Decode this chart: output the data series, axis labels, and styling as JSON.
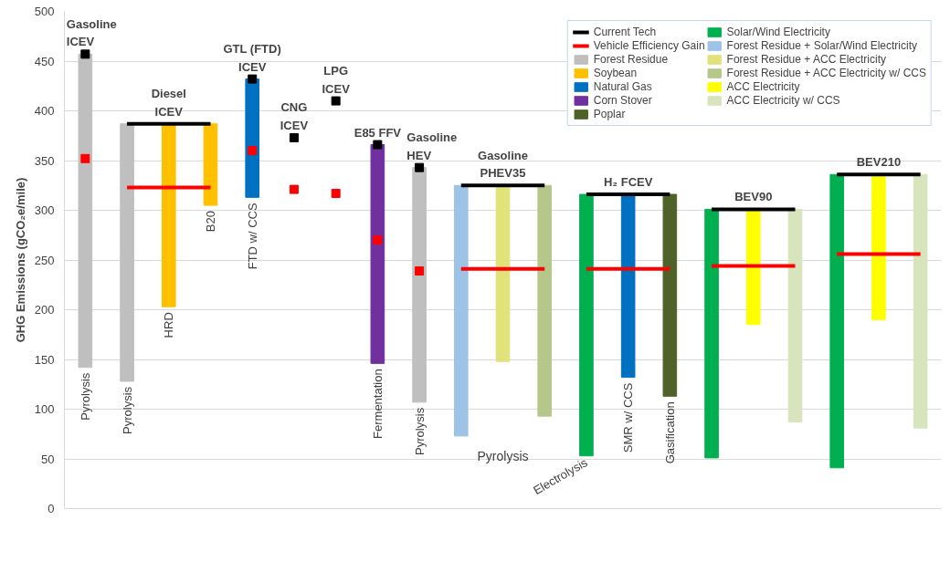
{
  "chart_data": {
    "type": "bar",
    "ylabel": "GHG Emissions (gCO₂e/mile)",
    "categories": [
      "Pyrolysis",
      "Pyrolysis",
      "HRD",
      "B20",
      "FTD w/ CCS",
      null,
      null,
      "Fermentation",
      "Pyrolysis",
      null,
      null,
      null,
      "Electrolysis",
      "SMR w/ CCS",
      "Gasification",
      null,
      null,
      null,
      null,
      null,
      null
    ],
    "ylim": [
      0,
      500
    ],
    "yticks": [
      0,
      50,
      100,
      150,
      200,
      250,
      300,
      350,
      400,
      450,
      500
    ],
    "grid": "y",
    "legend": "top right",
    "tick_labels": "y",
    "series": [
      {
        "name": "Current Tech",
        "type": "line",
        "color": "#000000",
        "values": [
          null,
          387,
          387,
          387,
          null,
          null,
          null,
          null,
          null,
          null,
          null,
          null,
          null,
          null,
          null,
          null,
          null,
          null,
          null,
          null,
          null
        ]
      },
      {
        "name": "Vehicle Efficiency Gain",
        "type": "line",
        "color": "#ff0000",
        "values": [
          null,
          323,
          323,
          323,
          null,
          null,
          null,
          null,
          null,
          null,
          null,
          null,
          null,
          null,
          null,
          null,
          null,
          null,
          null,
          null,
          null
        ]
      },
      {
        "type": "scatter",
        "marker": "square",
        "color": "#000000",
        "values": [
          457,
          null,
          null,
          null,
          432,
          373,
          410,
          366,
          343,
          null,
          null,
          null,
          null,
          null,
          null,
          null,
          null,
          null,
          null,
          null,
          null
        ]
      },
      {
        "type": "scatter",
        "marker": "square",
        "color": "#ff0000",
        "values": [
          352,
          null,
          null,
          null,
          360,
          321,
          317,
          270,
          239,
          null,
          null,
          null,
          null,
          null,
          null,
          null,
          null,
          null,
          null,
          null,
          null
        ]
      },
      {
        "type": "line",
        "color": "#000000",
        "values": [
          null,
          null,
          null,
          null,
          null,
          null,
          null,
          null,
          null,
          325,
          325,
          325,
          null,
          null,
          null,
          null,
          null,
          null,
          null,
          null,
          null
        ]
      },
      {
        "type": "line",
        "color": "#ff0000",
        "values": [
          null,
          null,
          null,
          null,
          null,
          null,
          null,
          null,
          null,
          241,
          241,
          241,
          null,
          null,
          null,
          null,
          null,
          null,
          null,
          null,
          null
        ]
      },
      {
        "type": "line",
        "color": "#000000",
        "values": [
          null,
          null,
          null,
          null,
          null,
          null,
          null,
          null,
          null,
          null,
          null,
          null,
          316,
          316,
          316,
          null,
          null,
          null,
          null,
          null,
          null
        ]
      },
      {
        "type": "line",
        "color": "#ff0000",
        "values": [
          null,
          null,
          null,
          null,
          null,
          null,
          null,
          null,
          null,
          null,
          null,
          null,
          241,
          241,
          241,
          null,
          null,
          null,
          null,
          null,
          null
        ]
      },
      {
        "type": "line",
        "color": "#000000",
        "values": [
          null,
          null,
          null,
          null,
          null,
          null,
          null,
          null,
          null,
          null,
          null,
          null,
          null,
          null,
          null,
          301,
          301,
          301,
          null,
          null,
          null
        ]
      },
      {
        "type": "line",
        "color": "#ff0000",
        "values": [
          null,
          null,
          null,
          null,
          null,
          null,
          null,
          null,
          null,
          null,
          null,
          null,
          null,
          null,
          null,
          244,
          244,
          244,
          null,
          null,
          null
        ]
      },
      {
        "type": "line",
        "color": "#000000",
        "values": [
          null,
          null,
          null,
          null,
          null,
          null,
          null,
          null,
          null,
          null,
          null,
          null,
          null,
          null,
          null,
          null,
          null,
          null,
          336,
          336,
          336
        ]
      },
      {
        "type": "line",
        "color": "#ff0000",
        "values": [
          null,
          null,
          null,
          null,
          null,
          null,
          null,
          null,
          null,
          null,
          null,
          null,
          null,
          null,
          null,
          null,
          null,
          null,
          256,
          256,
          256
        ]
      },
      {
        "name": "Forest Residue",
        "color": "#bfbfbf",
        "base": [
          457,
          387,
          null,
          null,
          null,
          null,
          null,
          null,
          343,
          null,
          null,
          null,
          null,
          null,
          null,
          null,
          null,
          null,
          null,
          null,
          null
        ],
        "values": [
          -315,
          -259,
          null,
          null,
          null,
          null,
          null,
          null,
          -236,
          null,
          null,
          null,
          null,
          null,
          null,
          null,
          null,
          null,
          null,
          null,
          null
        ]
      },
      {
        "name": "Soybean",
        "color": "#ffc000",
        "base": [
          null,
          null,
          387,
          387,
          null,
          null,
          null,
          null,
          null,
          null,
          null,
          null,
          null,
          null,
          null,
          null,
          null,
          null,
          null,
          null,
          null
        ],
        "values": [
          null,
          null,
          -184,
          -82,
          null,
          null,
          null,
          null,
          null,
          null,
          null,
          null,
          null,
          null,
          null,
          null,
          null,
          null,
          null,
          null,
          null
        ]
      },
      {
        "name": "Natural Gas",
        "color": "#0070c0",
        "base": [
          null,
          null,
          null,
          null,
          432,
          null,
          null,
          null,
          null,
          null,
          null,
          null,
          null,
          316,
          null,
          null,
          null,
          null,
          null,
          null,
          null
        ],
        "values": [
          null,
          null,
          null,
          null,
          -119,
          null,
          null,
          null,
          null,
          null,
          null,
          null,
          null,
          -184,
          null,
          null,
          null,
          null,
          null,
          null,
          null
        ]
      },
      {
        "name": "Corn Stover",
        "color": "#7030a0",
        "base": [
          null,
          null,
          null,
          null,
          null,
          null,
          null,
          366,
          null,
          null,
          null,
          null,
          null,
          null,
          null,
          null,
          null,
          null,
          null,
          null,
          null
        ],
        "values": [
          null,
          null,
          null,
          null,
          null,
          null,
          null,
          -220,
          null,
          null,
          null,
          null,
          null,
          null,
          null,
          null,
          null,
          null,
          null,
          null,
          null
        ]
      },
      {
        "name": "Poplar",
        "color": "#4f6228",
        "base": [
          null,
          null,
          null,
          null,
          null,
          null,
          null,
          null,
          null,
          null,
          null,
          null,
          null,
          null,
          316,
          null,
          null,
          null,
          null,
          null,
          null
        ],
        "values": [
          null,
          null,
          null,
          null,
          null,
          null,
          null,
          null,
          null,
          null,
          null,
          null,
          null,
          null,
          -203,
          null,
          null,
          null,
          null,
          null,
          null
        ]
      },
      {
        "name": "Solar/Wind Electricity",
        "color": "#00b050",
        "base": [
          null,
          null,
          null,
          null,
          null,
          null,
          null,
          null,
          null,
          null,
          null,
          null,
          316,
          null,
          null,
          301,
          null,
          null,
          336,
          null,
          null
        ],
        "values": [
          null,
          null,
          null,
          null,
          null,
          null,
          null,
          null,
          null,
          null,
          null,
          null,
          -263,
          null,
          null,
          -250,
          null,
          null,
          -295,
          null,
          null
        ]
      },
      {
        "name": "Forest Residue + Solar/Wind Electricity",
        "color": "#9dc3e6",
        "base": [
          null,
          null,
          null,
          null,
          null,
          null,
          null,
          null,
          null,
          325,
          null,
          null,
          null,
          null,
          null,
          null,
          null,
          null,
          null,
          null,
          null
        ],
        "values": [
          null,
          null,
          null,
          null,
          null,
          null,
          null,
          null,
          null,
          -252,
          null,
          null,
          null,
          null,
          null,
          null,
          null,
          null,
          null,
          null,
          null
        ]
      },
      {
        "name": "Forest Residue + ACC Electricity",
        "color": "#e2e27a",
        "base": [
          null,
          null,
          null,
          null,
          null,
          null,
          null,
          null,
          null,
          null,
          325,
          null,
          null,
          null,
          null,
          null,
          null,
          null,
          null,
          null,
          null
        ],
        "values": [
          null,
          null,
          null,
          null,
          null,
          null,
          null,
          null,
          null,
          null,
          -177,
          null,
          null,
          null,
          null,
          null,
          null,
          null,
          null,
          null,
          null
        ]
      },
      {
        "name": "Forest Residue + ACC Electricity w/ CCS",
        "color": "#b5c78a",
        "base": [
          null,
          null,
          null,
          null,
          null,
          null,
          null,
          null,
          null,
          null,
          null,
          325,
          null,
          null,
          null,
          null,
          null,
          null,
          null,
          null,
          null
        ],
        "values": [
          null,
          null,
          null,
          null,
          null,
          null,
          null,
          null,
          null,
          null,
          null,
          -232,
          null,
          null,
          null,
          null,
          null,
          null,
          null,
          null,
          null
        ]
      },
      {
        "name": "ACC Electricity",
        "color": "#ffff00",
        "base": [
          null,
          null,
          null,
          null,
          null,
          null,
          null,
          null,
          null,
          null,
          null,
          null,
          null,
          null,
          null,
          null,
          301,
          null,
          null,
          336,
          null
        ],
        "values": [
          null,
          null,
          null,
          null,
          null,
          null,
          null,
          null,
          null,
          null,
          null,
          null,
          null,
          null,
          null,
          null,
          -116,
          null,
          null,
          -146,
          null
        ]
      },
      {
        "name": "ACC Electricity w/ CCS",
        "color": "#d8e4bc",
        "base": [
          null,
          null,
          null,
          null,
          null,
          null,
          null,
          null,
          null,
          null,
          null,
          null,
          null,
          null,
          null,
          null,
          null,
          301,
          null,
          null,
          336
        ],
        "values": [
          null,
          null,
          null,
          null,
          null,
          null,
          null,
          null,
          null,
          null,
          null,
          null,
          null,
          null,
          null,
          null,
          null,
          -214,
          null,
          null,
          -255
        ]
      }
    ],
    "annotations": [
      "Gasoline\nICEV",
      "Diesel\nICEV",
      "GTL (FTD)\nICEV",
      "CNG\nICEV",
      "LPG\nICEV",
      "E85 FFV",
      "Gasoline\nHEV",
      "Gasoline\nPHEV35",
      "H₂ FCEV",
      "BEV90",
      "BEV210",
      "Pyrolysis"
    ]
  }
}
